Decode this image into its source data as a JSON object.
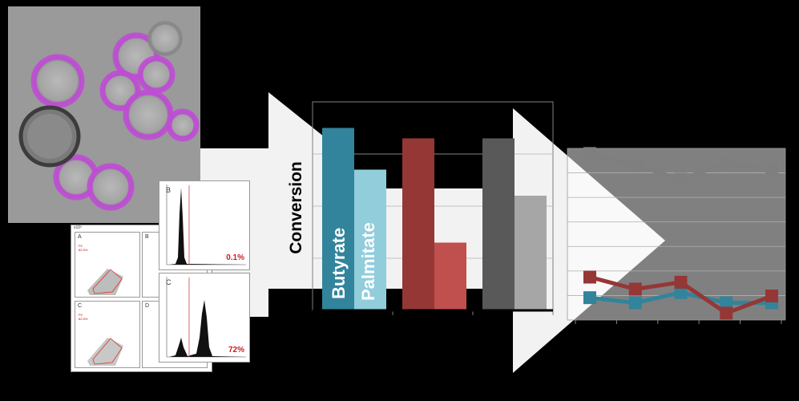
{
  "figure": {
    "ylabel": "Conversion",
    "bar_labels": [
      "Butyrate",
      "Palmitate"
    ]
  },
  "facs": {
    "scatter_panels": [
      "A",
      "B",
      "C",
      "D"
    ],
    "scatter_axis_tag": "x10³",
    "gate_text": "P2\n82.5%",
    "histograms": [
      {
        "label": "B",
        "percent": "0.1%"
      },
      {
        "label": "C",
        "percent": "72%"
      }
    ]
  },
  "colors": {
    "background": "#000000",
    "arrow": "#f2f2f2",
    "butyrate_dark": "#31849b",
    "palmitate_light": "#92cddc",
    "red_dark": "#953735",
    "red_light": "#c0504d",
    "gray_dark": "#595959",
    "gray_light": "#a6a6a6",
    "line_gray": "#7f7f7f",
    "line_blue": "#31849b",
    "line_red": "#953735"
  },
  "chart_data": [
    {
      "type": "bar",
      "categories": [
        "",
        "",
        ""
      ],
      "series": [
        {
          "name": "Butyrate",
          "values": [
            3.5,
            3.3,
            3.3
          ]
        },
        {
          "name": "Palmitate",
          "values": [
            2.7,
            1.3,
            2.2
          ]
        }
      ],
      "ylabel": "Conversion",
      "ylim": [
        0,
        4
      ],
      "grid": true
    },
    {
      "type": "line",
      "x": [
        1,
        2,
        3,
        4,
        5
      ],
      "series": [
        {
          "values": [
            9.7,
            9.0,
            8.2,
            9.1,
            8.8
          ]
        },
        {
          "values": [
            2.5,
            1.8,
            2.2,
            0.4,
            1.4
          ]
        },
        {
          "values": [
            1.3,
            1.0,
            1.6,
            1.0,
            1.0
          ]
        }
      ],
      "ylim": [
        0,
        10
      ],
      "grid": true
    }
  ]
}
